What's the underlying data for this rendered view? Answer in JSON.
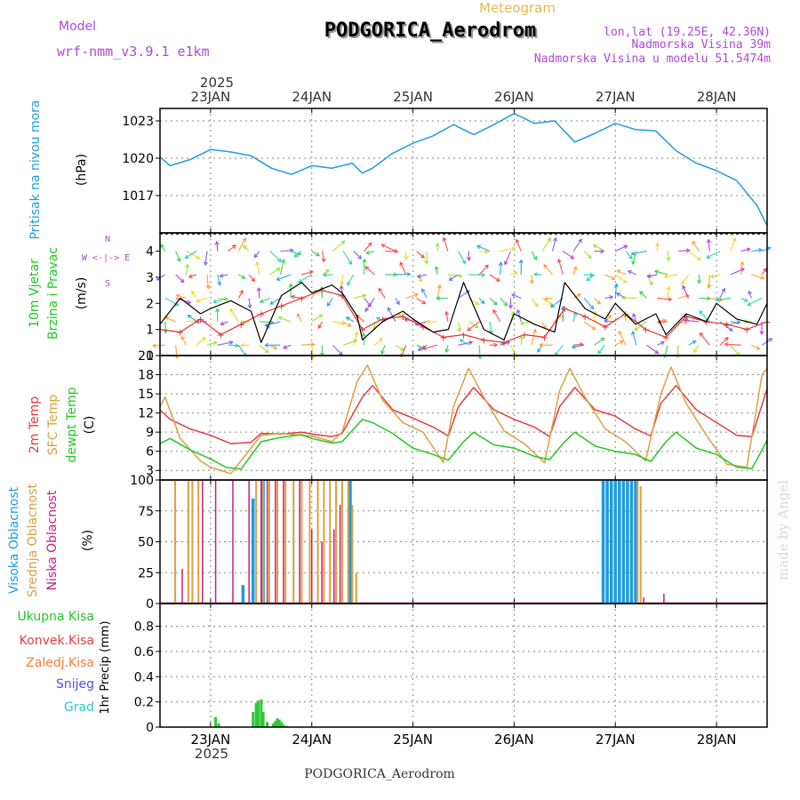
{
  "header": {
    "model_label": "Model",
    "model_name": "wrf-nmm_v3.9.1 e1km",
    "product": "Meteogram",
    "station": "PODGORICA_Aerodrom",
    "lonlat": "lon,lat (19.25E, 42.36N)",
    "elevation": "Nadmorska Visina 39m",
    "model_elevation": "Nadmorska Visina u modelu 51.5474m",
    "credit": "made by Angel",
    "footer_station": "PODGORICA_Aerodrom"
  },
  "colors": {
    "pressure": "#1e9be0",
    "wind_speed": "#000000",
    "wind_gust": "#e03030",
    "t2m": "#e83c3c",
    "sfc": "#dca040",
    "dew": "#22c822",
    "cloud_high": "#1e9be0",
    "cloud_mid": "#dca040",
    "cloud_low": "#c8207a",
    "precip": "#2ec83a",
    "label_purple": "#b048d8",
    "label_orange": "#e8b850"
  },
  "chart_data": [
    {
      "type": "line",
      "panel": "pressure",
      "ylabel_main": "Pritisak na nivou mora",
      "ylabel_unit": "(hPa)",
      "yticks": [
        "1017",
        "1020",
        "1023"
      ],
      "ylim": [
        1014,
        1024
      ],
      "x_dates": [
        "23JAN",
        "24JAN",
        "25JAN",
        "26JAN",
        "27JAN",
        "28JAN"
      ],
      "year": "2025",
      "xlim_days": [
        22.5,
        28.5
      ],
      "x": [
        22.5,
        22.6,
        22.8,
        23.0,
        23.2,
        23.4,
        23.6,
        23.8,
        24.0,
        24.2,
        24.4,
        24.5,
        24.6,
        24.8,
        25.0,
        25.2,
        25.4,
        25.6,
        25.8,
        26.0,
        26.2,
        26.4,
        26.6,
        26.8,
        27.0,
        27.2,
        27.4,
        27.6,
        27.8,
        28.0,
        28.2,
        28.4,
        28.5
      ],
      "y": [
        1020.1,
        1019.4,
        1019.9,
        1020.7,
        1020.5,
        1020.2,
        1019.2,
        1018.7,
        1019.4,
        1019.2,
        1019.6,
        1018.8,
        1019.2,
        1020.4,
        1021.2,
        1021.8,
        1022.7,
        1021.9,
        1022.7,
        1023.6,
        1022.8,
        1023.0,
        1021.3,
        1022.0,
        1022.8,
        1022.3,
        1022.2,
        1020.6,
        1019.6,
        1019.0,
        1018.2,
        1016.2,
        1014.6
      ]
    },
    {
      "type": "line",
      "panel": "wind",
      "ylabel_main": "10m Vjetar",
      "ylabel_sub": "Brzina i Pravac",
      "ylabel_unit": "(m/s)",
      "compass": "W <-|-> E",
      "compass_n": "N",
      "compass_s": "S",
      "yticks": [
        "0",
        "1",
        "2",
        "3",
        "4"
      ],
      "ylim": [
        0,
        4.7
      ],
      "series": [
        {
          "name": "speed",
          "x": [
            22.5,
            22.7,
            22.9,
            23.0,
            23.2,
            23.4,
            23.5,
            23.7,
            23.9,
            24.0,
            24.2,
            24.3,
            24.45,
            24.5,
            24.7,
            24.9,
            25.0,
            25.2,
            25.35,
            25.5,
            25.7,
            25.9,
            26.0,
            26.2,
            26.4,
            26.5,
            26.7,
            26.9,
            27.0,
            27.2,
            27.4,
            27.5,
            27.7,
            27.9,
            28.0,
            28.2,
            28.4,
            28.5
          ],
          "y": [
            1.2,
            2.2,
            1.6,
            1.8,
            2.1,
            1.7,
            0.5,
            2.3,
            2.8,
            2.4,
            2.7,
            2.4,
            1.5,
            0.6,
            1.3,
            1.7,
            1.4,
            0.9,
            1.0,
            2.8,
            1.0,
            0.6,
            1.6,
            1.2,
            0.9,
            2.8,
            1.8,
            1.4,
            2.0,
            1.2,
            1.6,
            0.8,
            1.6,
            1.3,
            2.0,
            1.4,
            1.2,
            2.0
          ]
        },
        {
          "name": "gust",
          "x": [
            22.5,
            22.7,
            22.9,
            23.1,
            23.3,
            23.5,
            23.7,
            23.9,
            24.1,
            24.3,
            24.5,
            24.7,
            24.9,
            25.1,
            25.3,
            25.5,
            25.7,
            25.9,
            26.1,
            26.3,
            26.5,
            26.7,
            26.9,
            27.1,
            27.3,
            27.5,
            27.7,
            27.9,
            28.1,
            28.3,
            28.5
          ],
          "y": [
            1.0,
            0.9,
            1.4,
            0.8,
            1.2,
            1.6,
            1.9,
            2.2,
            2.5,
            2.3,
            1.0,
            1.4,
            1.5,
            1.1,
            0.7,
            0.8,
            0.6,
            0.5,
            0.8,
            0.7,
            1.8,
            1.5,
            1.1,
            1.6,
            1.0,
            0.7,
            1.5,
            1.3,
            1.2,
            1.0,
            1.3
          ]
        }
      ]
    },
    {
      "type": "line",
      "panel": "temperature",
      "ylabel_t2m": "2m Temp",
      "ylabel_sfc": "SFC Temp",
      "ylabel_dew": "dewpt Temp",
      "ylabel_unit": "(C)",
      "yticks": [
        "3",
        "6",
        "9",
        "12",
        "15",
        "18",
        "21"
      ],
      "ylim": [
        1.5,
        21
      ],
      "series": [
        {
          "name": "2m Temp",
          "x": [
            22.5,
            22.6,
            22.8,
            23.0,
            23.2,
            23.4,
            23.5,
            23.7,
            23.9,
            24.0,
            24.2,
            24.3,
            24.5,
            24.6,
            24.8,
            25.0,
            25.2,
            25.35,
            25.45,
            25.6,
            25.8,
            26.0,
            26.2,
            26.35,
            26.45,
            26.6,
            26.8,
            27.0,
            27.2,
            27.35,
            27.45,
            27.6,
            27.8,
            28.0,
            28.2,
            28.35,
            28.5
          ],
          "y": [
            12.5,
            11.0,
            9.5,
            8.5,
            7.2,
            7.4,
            8.8,
            8.7,
            9.0,
            8.7,
            8.3,
            8.8,
            14.5,
            16.3,
            12.5,
            11.2,
            9.8,
            8.4,
            13.0,
            16.0,
            12.5,
            11.0,
            9.8,
            8.3,
            13.0,
            16.0,
            12.5,
            11.5,
            9.5,
            8.4,
            13.5,
            16.3,
            12.5,
            10.5,
            8.5,
            8.3,
            15.8
          ]
        },
        {
          "name": "SFC Temp",
          "x": [
            22.5,
            22.55,
            22.7,
            22.9,
            23.0,
            23.2,
            23.4,
            23.5,
            23.7,
            23.9,
            24.0,
            24.2,
            24.3,
            24.45,
            24.55,
            24.7,
            24.9,
            25.1,
            25.3,
            25.4,
            25.55,
            25.7,
            25.9,
            26.1,
            26.3,
            26.45,
            26.55,
            26.7,
            26.9,
            27.1,
            27.3,
            27.45,
            27.55,
            27.7,
            27.9,
            28.1,
            28.3,
            28.45,
            28.5
          ],
          "y": [
            13.0,
            14.5,
            8.0,
            4.5,
            3.5,
            2.5,
            6.5,
            8.5,
            8.8,
            8.5,
            8.4,
            7.5,
            9.0,
            17.0,
            19.5,
            14.0,
            10.5,
            9.0,
            4.2,
            13.0,
            19.0,
            14.5,
            9.2,
            7.2,
            4.2,
            15.5,
            19.0,
            14.5,
            9.5,
            7.5,
            4.5,
            15.0,
            19.2,
            13.5,
            8.5,
            4.0,
            3.5,
            18.0,
            19.0
          ]
        },
        {
          "name": "dewpt Temp",
          "x": [
            22.5,
            22.6,
            22.8,
            23.0,
            23.15,
            23.3,
            23.5,
            23.7,
            23.9,
            24.0,
            24.2,
            24.3,
            24.5,
            24.6,
            24.8,
            25.0,
            25.2,
            25.35,
            25.5,
            25.6,
            25.8,
            26.0,
            26.2,
            26.35,
            26.5,
            26.6,
            26.8,
            27.0,
            27.2,
            27.35,
            27.5,
            27.6,
            27.8,
            28.0,
            28.2,
            28.35,
            28.5
          ],
          "y": [
            7.2,
            8.0,
            6.2,
            4.8,
            3.5,
            3.2,
            7.5,
            8.2,
            8.6,
            8.0,
            7.3,
            7.5,
            11.0,
            10.5,
            8.8,
            6.5,
            5.5,
            4.6,
            7.5,
            9.0,
            7.0,
            6.5,
            5.2,
            4.7,
            7.5,
            9.0,
            6.8,
            6.0,
            5.5,
            4.4,
            7.5,
            9.0,
            6.5,
            5.5,
            3.5,
            3.3,
            7.7
          ]
        }
      ]
    },
    {
      "type": "bar",
      "panel": "clouds",
      "ylabel_high": "Visoka Oblacnost",
      "ylabel_mid": "Srednja Oblacnost",
      "ylabel_low": "Niska Oblacnost",
      "ylabel_unit": "(%)",
      "yticks": [
        "0",
        "25",
        "50",
        "75",
        "100"
      ],
      "ylim": [
        0,
        100
      ],
      "series": [
        {
          "name": "Visoka Oblacnost",
          "x": [
            23.32,
            23.42,
            23.52,
            24.38,
            26.88,
            26.92,
            26.96,
            27.0,
            27.04,
            27.08,
            27.12,
            27.16,
            27.2
          ],
          "values": [
            15,
            85,
            100,
            100,
            100,
            100,
            100,
            100,
            100,
            100,
            100,
            100,
            100
          ]
        },
        {
          "name": "Srednja Oblacnost",
          "x": [
            22.65,
            22.78,
            22.82,
            22.88,
            23.45,
            23.52,
            23.58,
            23.66,
            23.74,
            23.82,
            23.9,
            23.98,
            24.06,
            24.12,
            24.18,
            24.24,
            24.3,
            24.36,
            24.4,
            24.44,
            27.22,
            27.25
          ],
          "values": [
            100,
            100,
            100,
            100,
            100,
            100,
            100,
            100,
            100,
            100,
            100,
            100,
            100,
            100,
            100,
            100,
            100,
            100,
            80,
            25,
            100,
            95
          ]
        },
        {
          "name": "Niska Oblacnost",
          "x": [
            22.72,
            22.92,
            23.05,
            23.22,
            23.38,
            23.5,
            23.56,
            23.64,
            23.72,
            23.88,
            24.0,
            24.1,
            24.22,
            24.28,
            27.28,
            27.48
          ],
          "values": [
            28,
            100,
            100,
            100,
            100,
            100,
            100,
            100,
            100,
            100,
            60,
            50,
            60,
            80,
            5,
            8
          ]
        }
      ]
    },
    {
      "type": "bar",
      "panel": "precip",
      "label_total": "Ukupna Kisa",
      "label_conv": "Konvek.Kisa",
      "label_frz": "Zaledj.Kisa",
      "label_snow": "Snijeg",
      "label_hail": "Grad",
      "ylabel_unit": "1hr Precip (mm)",
      "yticks": [
        "0",
        "0.2",
        "0.4",
        "0.6",
        "0.8"
      ],
      "ylim": [
        0,
        0.98
      ],
      "series": [
        {
          "name": "Ukupna Kisa",
          "x": [
            23.05,
            23.08,
            23.42,
            23.45,
            23.47,
            23.5,
            23.52,
            23.56,
            23.62,
            23.64,
            23.66,
            23.68,
            23.7,
            23.72,
            23.75
          ],
          "values": [
            0.08,
            0.03,
            0.12,
            0.19,
            0.21,
            0.22,
            0.12,
            0.04,
            0.03,
            0.05,
            0.07,
            0.06,
            0.04,
            0.02,
            0.01
          ]
        }
      ]
    }
  ]
}
